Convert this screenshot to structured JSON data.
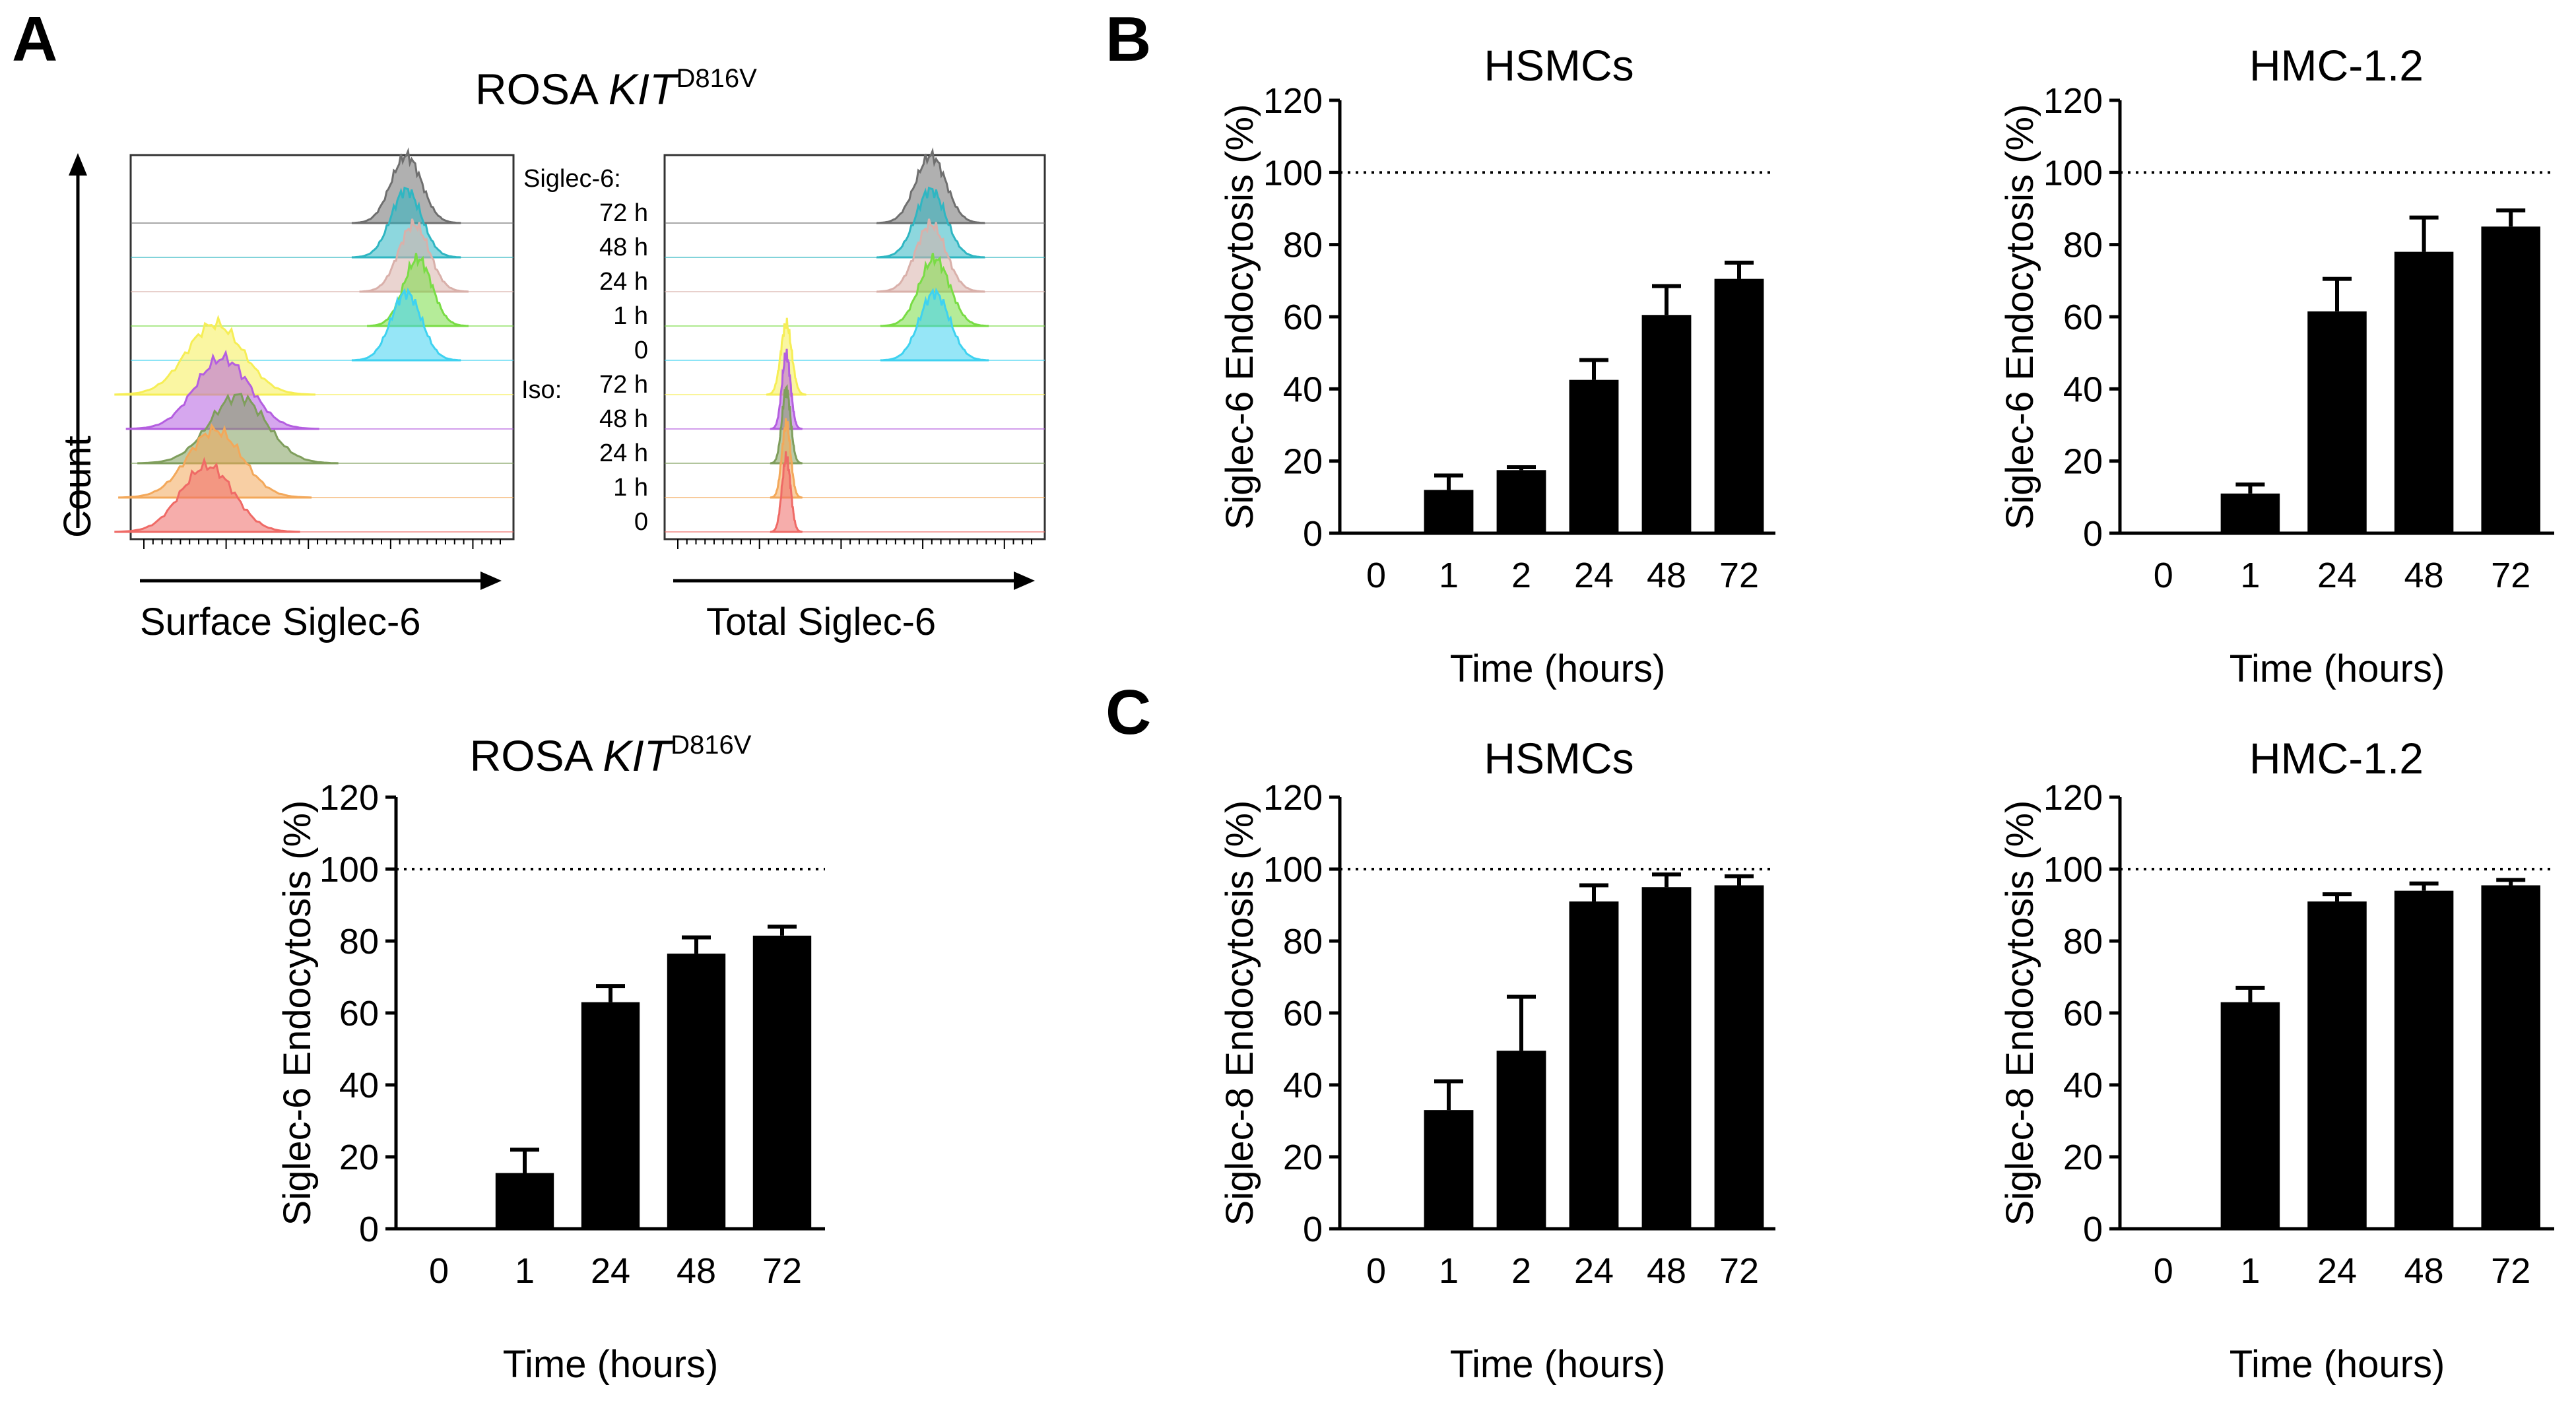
{
  "panels": {
    "a": "A",
    "b": "B",
    "c": "C"
  },
  "flow": {
    "title_main": "ROSA ",
    "title_italic": "KIT",
    "title_sup": "D816V",
    "y_label": "Count",
    "x_label_left": "Surface Siglec-6",
    "x_label_right": "Total Siglec-6",
    "legend_header": "Siglec-6:",
    "iso_label": "Iso:",
    "time_labels": [
      "72 h",
      "48 h",
      "24 h",
      "1 h",
      "0",
      "72 h",
      "48 h",
      "24 h",
      "1 h",
      "0"
    ],
    "colors": [
      "#6f6f6f",
      "#2fb6c2",
      "#d9b0aa",
      "#79dc45",
      "#3fd2f0",
      "#f6ee56",
      "#b45ee0",
      "#7f9e5c",
      "#f3a85a",
      "#ef6a66"
    ]
  },
  "chart_data": [
    {
      "id": "rosa",
      "type": "bar",
      "title_main": "ROSA ",
      "title_italic": "KIT",
      "title_sup": "D816V",
      "categories": [
        "0",
        "1",
        "24",
        "48",
        "72"
      ],
      "values": [
        0,
        15.5,
        63,
        76.5,
        81.5
      ],
      "errors": [
        0,
        6.5,
        4.5,
        4.5,
        2.5
      ],
      "xlabel": "Time (hours)",
      "ylabel": "Siglec-6 Endocytosis (%)",
      "ylim": [
        0,
        120
      ],
      "yticks": [
        "0",
        "20",
        "40",
        "60",
        "80",
        "100",
        "120"
      ],
      "reference_line": 100
    },
    {
      "id": "b_hsmc",
      "type": "bar",
      "title": "HSMCs",
      "categories": [
        "0",
        "1",
        "2",
        "24",
        "48",
        "72"
      ],
      "values": [
        0,
        12,
        17.5,
        42.5,
        60.5,
        70.5
      ],
      "errors": [
        0,
        4,
        0.8,
        5.5,
        8,
        4.5
      ],
      "xlabel": "Time (hours)",
      "ylabel": "Siglec-6 Endocytosis (%)",
      "ylim": [
        0,
        120
      ],
      "yticks": [
        "0",
        "20",
        "40",
        "60",
        "80",
        "100",
        "120"
      ],
      "reference_line": 100
    },
    {
      "id": "b_hmc",
      "type": "bar",
      "title": "HMC-1.2",
      "categories": [
        "0",
        "1",
        "24",
        "48",
        "72"
      ],
      "values": [
        0,
        11,
        61.5,
        78,
        85
      ],
      "errors": [
        0,
        2.5,
        9,
        9.5,
        4.5
      ],
      "xlabel": "Time (hours)",
      "ylabel": "Siglec-6 Endocytosis (%)",
      "ylim": [
        0,
        120
      ],
      "yticks": [
        "0",
        "20",
        "40",
        "60",
        "80",
        "100",
        "120"
      ],
      "reference_line": 100
    },
    {
      "id": "c_hsmc",
      "type": "bar",
      "title": "HSMCs",
      "categories": [
        "0",
        "1",
        "2",
        "24",
        "48",
        "72"
      ],
      "values": [
        0,
        33,
        49.5,
        91,
        95,
        95.5
      ],
      "errors": [
        0,
        8,
        15,
        4.5,
        3.5,
        2.5
      ],
      "xlabel": "Time (hours)",
      "ylabel": "Siglec-8 Endocytosis (%)",
      "ylim": [
        0,
        120
      ],
      "yticks": [
        "0",
        "20",
        "40",
        "60",
        "80",
        "100",
        "120"
      ],
      "reference_line": 100
    },
    {
      "id": "c_hmc",
      "type": "bar",
      "title": "HMC-1.2",
      "categories": [
        "0",
        "1",
        "24",
        "48",
        "72"
      ],
      "values": [
        0,
        63,
        91,
        94,
        95.5
      ],
      "errors": [
        0,
        4,
        2,
        2,
        1.5
      ],
      "xlabel": "Time (hours)",
      "ylabel": "Siglec-8 Endocytosis (%)",
      "ylim": [
        0,
        120
      ],
      "yticks": [
        "0",
        "20",
        "40",
        "60",
        "80",
        "100",
        "120"
      ],
      "reference_line": 100
    }
  ]
}
